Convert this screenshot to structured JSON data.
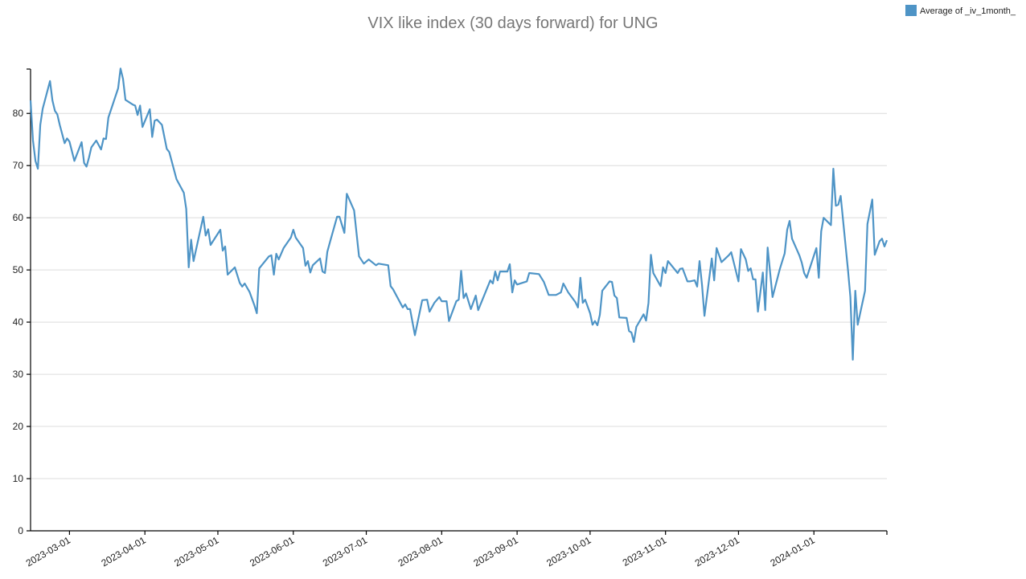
{
  "chart_data": {
    "type": "line",
    "title": "VIX like index (30 days forward) for UNG",
    "xlabel": "",
    "ylabel": "",
    "legend": {
      "placement": "top-right",
      "entries": [
        "Average of _iv_1month_"
      ]
    },
    "color": "#4e94c6",
    "grid": true,
    "xlim": [
      "2023-02-13",
      "2024-01-31"
    ],
    "ylim": [
      0,
      88.5
    ],
    "yticks": [
      0,
      10,
      20,
      30,
      40,
      50,
      60,
      70,
      80
    ],
    "xticks": [
      "2023-03-01",
      "2023-04-01",
      "2023-05-01",
      "2023-06-01",
      "2023-07-01",
      "2023-08-01",
      "2023-09-01",
      "2023-10-01",
      "2023-11-01",
      "2023-12-01",
      "2024-01-01"
    ],
    "series": [
      {
        "name": "Average of _iv_1month_",
        "x": [
          "2023-02-13",
          "2023-02-14",
          "2023-02-15",
          "2023-02-16",
          "2023-02-17",
          "2023-02-18",
          "2023-02-21",
          "2023-02-22",
          "2023-02-23",
          "2023-02-24",
          "2023-02-25",
          "2023-02-27",
          "2023-02-28",
          "2023-03-01",
          "2023-03-03",
          "2023-03-06",
          "2023-03-07",
          "2023-03-08",
          "2023-03-09",
          "2023-03-10",
          "2023-03-12",
          "2023-03-14",
          "2023-03-15",
          "2023-03-16",
          "2023-03-17",
          "2023-03-21",
          "2023-03-22",
          "2023-03-23",
          "2023-03-24",
          "2023-03-27",
          "2023-03-28",
          "2023-03-29",
          "2023-03-30",
          "2023-03-31",
          "2023-04-03",
          "2023-04-04",
          "2023-04-05",
          "2023-04-06",
          "2023-04-08",
          "2023-04-10",
          "2023-04-11",
          "2023-04-14",
          "2023-04-17",
          "2023-04-18",
          "2023-04-19",
          "2023-04-20",
          "2023-04-21",
          "2023-04-25",
          "2023-04-26",
          "2023-04-27",
          "2023-04-28",
          "2023-05-02",
          "2023-05-03",
          "2023-05-04",
          "2023-05-05",
          "2023-05-08",
          "2023-05-10",
          "2023-05-11",
          "2023-05-12",
          "2023-05-14",
          "2023-05-16",
          "2023-05-17",
          "2023-05-18",
          "2023-05-22",
          "2023-05-23",
          "2023-05-24",
          "2023-05-25",
          "2023-05-26",
          "2023-05-28",
          "2023-05-31",
          "2023-06-01",
          "2023-06-02",
          "2023-06-05",
          "2023-06-06",
          "2023-06-07",
          "2023-06-08",
          "2023-06-09",
          "2023-06-12",
          "2023-06-13",
          "2023-06-14",
          "2023-06-15",
          "2023-06-16",
          "2023-06-19",
          "2023-06-20",
          "2023-06-22",
          "2023-06-23",
          "2023-06-26",
          "2023-06-28",
          "2023-06-30",
          "2023-07-02",
          "2023-07-05",
          "2023-07-06",
          "2023-07-10",
          "2023-07-11",
          "2023-07-12",
          "2023-07-16",
          "2023-07-17",
          "2023-07-18",
          "2023-07-19",
          "2023-07-21",
          "2023-07-24",
          "2023-07-26",
          "2023-07-27",
          "2023-07-29",
          "2023-07-31",
          "2023-08-01",
          "2023-08-03",
          "2023-08-04",
          "2023-08-07",
          "2023-08-08",
          "2023-08-09",
          "2023-08-10",
          "2023-08-11",
          "2023-08-13",
          "2023-08-15",
          "2023-08-16",
          "2023-08-21",
          "2023-08-22",
          "2023-08-23",
          "2023-08-24",
          "2023-08-25",
          "2023-08-28",
          "2023-08-29",
          "2023-08-30",
          "2023-08-31",
          "2023-09-01",
          "2023-09-05",
          "2023-09-06",
          "2023-09-10",
          "2023-09-12",
          "2023-09-14",
          "2023-09-17",
          "2023-09-19",
          "2023-09-20",
          "2023-09-22",
          "2023-09-25",
          "2023-09-26",
          "2023-09-27",
          "2023-09-28",
          "2023-09-29",
          "2023-10-01",
          "2023-10-02",
          "2023-10-03",
          "2023-10-04",
          "2023-10-05",
          "2023-10-06",
          "2023-10-09",
          "2023-10-10",
          "2023-10-11",
          "2023-10-12",
          "2023-10-13",
          "2023-10-16",
          "2023-10-17",
          "2023-10-18",
          "2023-10-19",
          "2023-10-20",
          "2023-10-23",
          "2023-10-24",
          "2023-10-25",
          "2023-10-26",
          "2023-10-27",
          "2023-10-30",
          "2023-10-31",
          "2023-11-01",
          "2023-11-02",
          "2023-11-06",
          "2023-11-07",
          "2023-11-08",
          "2023-11-10",
          "2023-11-11",
          "2023-11-13",
          "2023-11-14",
          "2023-11-15",
          "2023-11-16",
          "2023-11-17",
          "2023-11-20",
          "2023-11-21",
          "2023-11-22",
          "2023-11-24",
          "2023-11-27",
          "2023-11-28",
          "2023-12-01",
          "2023-12-02",
          "2023-12-04",
          "2023-12-05",
          "2023-12-06",
          "2023-12-07",
          "2023-12-08",
          "2023-12-09",
          "2023-12-11",
          "2023-12-12",
          "2023-12-13",
          "2023-12-15",
          "2023-12-18",
          "2023-12-20",
          "2023-12-21",
          "2023-12-22",
          "2023-12-23",
          "2023-12-26",
          "2023-12-27",
          "2023-12-28",
          "2023-12-29",
          "2024-01-02",
          "2024-01-03",
          "2024-01-04",
          "2024-01-05",
          "2024-01-08",
          "2024-01-09",
          "2024-01-10",
          "2024-01-11",
          "2024-01-12",
          "2024-01-15",
          "2024-01-16",
          "2024-01-17",
          "2024-01-18",
          "2024-01-19",
          "2024-01-22",
          "2024-01-23",
          "2024-01-25",
          "2024-01-26",
          "2024-01-28",
          "2024-01-29",
          "2024-01-30",
          "2024-01-31"
        ],
        "y": [
          82.5,
          74.8,
          70.9,
          69.4,
          77.8,
          80.9,
          86.2,
          82.5,
          80.5,
          79.8,
          77.8,
          74.3,
          75.2,
          74.6,
          70.9,
          74.5,
          70.5,
          69.8,
          71.5,
          73.5,
          74.8,
          73.1,
          75.2,
          75.1,
          79.2,
          84.8,
          88.6,
          86.6,
          82.6,
          81.7,
          81.5,
          79.7,
          81.5,
          77.4,
          80.8,
          75.5,
          78.6,
          78.8,
          77.8,
          73.2,
          72.6,
          67.4,
          64.8,
          61.7,
          50.5,
          55.8,
          51.7,
          60.2,
          56.6,
          57.8,
          54.8,
          57.7,
          53.7,
          54.5,
          49.1,
          50.5,
          47.5,
          46.8,
          47.4,
          45.8,
          43.2,
          41.7,
          50.3,
          52.6,
          52.8,
          49.1,
          53.1,
          52.0,
          54.2,
          56.2,
          57.7,
          56.2,
          54.2,
          50.8,
          51.7,
          49.5,
          50.9,
          52.2,
          49.7,
          49.4,
          53.5,
          55.2,
          60.2,
          60.2,
          57.1,
          64.6,
          61.4,
          52.6,
          51.2,
          52.0,
          50.9,
          51.2,
          50.9,
          46.9,
          46.3,
          42.8,
          43.4,
          42.5,
          42.5,
          37.5,
          44.2,
          44.3,
          42.0,
          43.7,
          44.8,
          44.0,
          44.0,
          40.2,
          44.0,
          44.3,
          49.8,
          44.6,
          45.5,
          42.5,
          45.1,
          42.3,
          48.0,
          47.4,
          49.7,
          48.0,
          49.7,
          49.7,
          51.1,
          45.7,
          48.0,
          47.2,
          47.8,
          49.4,
          49.2,
          47.7,
          45.2,
          45.2,
          45.7,
          47.4,
          45.7,
          43.8,
          42.8,
          48.5,
          43.7,
          44.3,
          41.7,
          39.5,
          40.2,
          39.4,
          41.4,
          46.0,
          47.8,
          47.7,
          45.1,
          44.6,
          40.9,
          40.8,
          38.3,
          38.0,
          36.2,
          39.1,
          41.5,
          40.3,
          43.7,
          52.9,
          49.4,
          46.9,
          50.5,
          49.4,
          51.7,
          49.4,
          50.2,
          50.3,
          47.8,
          47.8,
          48.0,
          46.8,
          51.7,
          47.1,
          41.2,
          52.2,
          48.0,
          54.2,
          51.5,
          52.8,
          53.4,
          47.8,
          54.0,
          52.0,
          49.8,
          50.3,
          48.2,
          48.2,
          42.0,
          49.5,
          42.3,
          54.3,
          44.8,
          50.2,
          53.2,
          57.7,
          59.4,
          56.0,
          52.8,
          51.4,
          49.4,
          48.5,
          54.2,
          48.5,
          57.4,
          60.0,
          58.6,
          69.4,
          62.3,
          62.5,
          64.2,
          50.0,
          44.8,
          32.8,
          46.0,
          39.5,
          46.0,
          58.8,
          63.5,
          52.9,
          55.5,
          56.0,
          54.5,
          55.7
        ]
      }
    ]
  }
}
